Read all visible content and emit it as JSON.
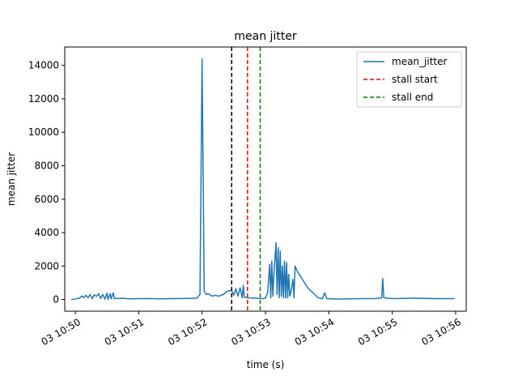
{
  "chart_data": {
    "type": "line",
    "title": "mean jitter",
    "xlabel": "time (s)",
    "ylabel": "mean jitter",
    "xlim": [
      "10:49:50",
      "10:56:10"
    ],
    "ylim": [
      -700,
      15100
    ],
    "x_ticks": [
      {
        "t": "10:50:00",
        "label": "03 10:50"
      },
      {
        "t": "10:51:00",
        "label": "03 10:51"
      },
      {
        "t": "10:52:00",
        "label": "03 10:52"
      },
      {
        "t": "10:53:00",
        "label": "03 10:53"
      },
      {
        "t": "10:54:00",
        "label": "03 10:54"
      },
      {
        "t": "10:55:00",
        "label": "03 10:55"
      },
      {
        "t": "10:56:00",
        "label": "03 10:56"
      }
    ],
    "y_ticks": [
      0,
      2000,
      4000,
      6000,
      8000,
      10000,
      12000,
      14000
    ],
    "grid": false,
    "legend_position": "top-right",
    "series": [
      {
        "name": "mean_jitter",
        "color": "#1f77b4",
        "style": "solid",
        "points": [
          [
            "10:49:56",
            0
          ],
          [
            "10:50:00",
            30
          ],
          [
            "10:50:04",
            80
          ],
          [
            "10:50:06",
            200
          ],
          [
            "10:50:08",
            120
          ],
          [
            "10:50:10",
            250
          ],
          [
            "10:50:12",
            100
          ],
          [
            "10:50:14",
            300
          ],
          [
            "10:50:16",
            50
          ],
          [
            "10:50:18",
            280
          ],
          [
            "10:50:20",
            180
          ],
          [
            "10:50:22",
            350
          ],
          [
            "10:50:24",
            60
          ],
          [
            "10:50:26",
            300
          ],
          [
            "10:50:28",
            20
          ],
          [
            "10:50:30",
            380
          ],
          [
            "10:50:31",
            10
          ],
          [
            "10:50:33",
            350
          ],
          [
            "10:50:34",
            30
          ],
          [
            "10:50:36",
            400
          ],
          [
            "10:50:37",
            50
          ],
          [
            "10:50:38",
            60
          ],
          [
            "10:50:45",
            70
          ],
          [
            "10:50:52",
            40
          ],
          [
            "10:51:00",
            50
          ],
          [
            "10:51:10",
            60
          ],
          [
            "10:51:20",
            40
          ],
          [
            "10:51:30",
            50
          ],
          [
            "10:51:40",
            60
          ],
          [
            "10:51:50",
            70
          ],
          [
            "10:51:55",
            80
          ],
          [
            "10:51:58",
            300
          ],
          [
            "10:52:00",
            14400
          ],
          [
            "10:52:02",
            500
          ],
          [
            "10:52:04",
            300
          ],
          [
            "10:52:06",
            350
          ],
          [
            "10:52:08",
            250
          ],
          [
            "10:52:10",
            200
          ],
          [
            "10:52:12",
            250
          ],
          [
            "10:52:16",
            200
          ],
          [
            "10:52:20",
            300
          ],
          [
            "10:52:24",
            500
          ],
          [
            "10:52:28",
            550
          ],
          [
            "10:52:30",
            250
          ],
          [
            "10:52:32",
            650
          ],
          [
            "10:52:34",
            200
          ],
          [
            "10:52:36",
            700
          ],
          [
            "10:52:38",
            100
          ],
          [
            "10:52:39",
            850
          ],
          [
            "10:52:40",
            150
          ],
          [
            "10:52:44",
            100
          ],
          [
            "10:52:50",
            80
          ],
          [
            "10:52:56",
            60
          ],
          [
            "10:52:58",
            50
          ],
          [
            "10:53:00",
            100
          ],
          [
            "10:53:02",
            400
          ],
          [
            "10:53:04",
            2100
          ],
          [
            "10:53:05",
            100
          ],
          [
            "10:53:06",
            2300
          ],
          [
            "10:53:07",
            200
          ],
          [
            "10:53:08",
            1500
          ],
          [
            "10:53:10",
            3400
          ],
          [
            "10:53:11",
            300
          ],
          [
            "10:53:12",
            3100
          ],
          [
            "10:53:13",
            100
          ],
          [
            "10:53:14",
            2900
          ],
          [
            "10:53:15",
            200
          ],
          [
            "10:53:16",
            2000
          ],
          [
            "10:53:17",
            100
          ],
          [
            "10:53:18",
            2300
          ],
          [
            "10:53:19",
            100
          ],
          [
            "10:53:20",
            2200
          ],
          [
            "10:53:21",
            100
          ],
          [
            "10:53:22",
            1500
          ],
          [
            "10:53:23",
            200
          ],
          [
            "10:53:24",
            400
          ],
          [
            "10:53:26",
            1200
          ],
          [
            "10:53:27",
            100
          ],
          [
            "10:53:28",
            2000
          ],
          [
            "10:53:30",
            1700
          ],
          [
            "10:53:40",
            700
          ],
          [
            "10:53:50",
            100
          ],
          [
            "10:53:54",
            50
          ],
          [
            "10:53:56",
            400
          ],
          [
            "10:53:58",
            50
          ],
          [
            "10:54:10",
            30
          ],
          [
            "10:54:30",
            50
          ],
          [
            "10:54:45",
            60
          ],
          [
            "10:54:50",
            100
          ],
          [
            "10:54:51",
            1250
          ],
          [
            "10:54:52",
            100
          ],
          [
            "10:55:00",
            50
          ],
          [
            "10:55:20",
            80
          ],
          [
            "10:55:40",
            50
          ],
          [
            "10:55:59",
            50
          ]
        ]
      }
    ],
    "vertical_lines": [
      {
        "name": "",
        "t": "10:52:28",
        "color": "#000000",
        "style": "dashed"
      },
      {
        "name": "stall start",
        "t": "10:52:43",
        "color": "#ff0000",
        "style": "dashed"
      },
      {
        "name": "stall end",
        "t": "10:52:55",
        "color": "#008000",
        "style": "dashed"
      }
    ]
  }
}
